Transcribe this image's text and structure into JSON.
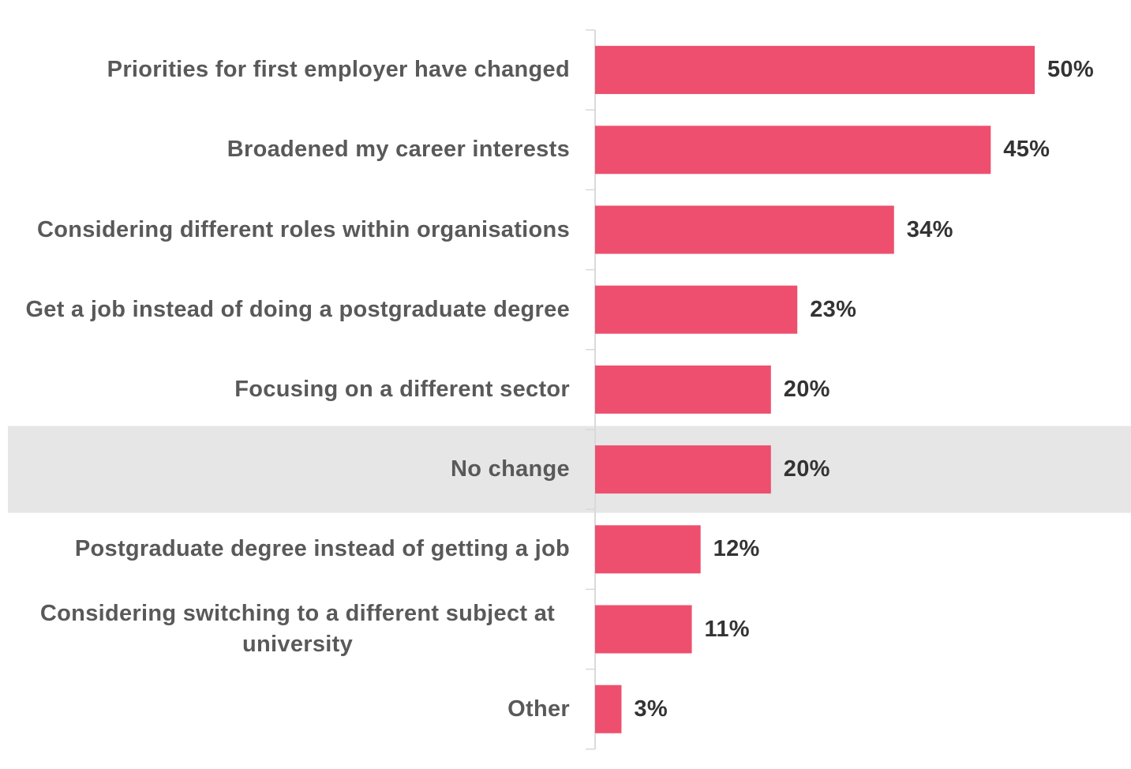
{
  "chart_data": {
    "type": "bar",
    "orientation": "horizontal",
    "categories": [
      "Priorities for first employer have changed",
      "Broadened my career interests",
      "Considering different roles within organisations",
      "Get a job instead of doing a postgraduate degree",
      "Focusing on a different sector",
      "No change",
      "Postgraduate degree instead of getting a job",
      "Considering switching to a different subject at university",
      "Other"
    ],
    "values": [
      50,
      45,
      34,
      23,
      20,
      20,
      12,
      11,
      3
    ],
    "value_labels": [
      "50%",
      "45%",
      "34%",
      "23%",
      "20%",
      "20%",
      "12%",
      "11%",
      "3%"
    ],
    "color": "#ee4f6e",
    "highlight_index": 5,
    "highlight_color": "#e6e6e6"
  }
}
